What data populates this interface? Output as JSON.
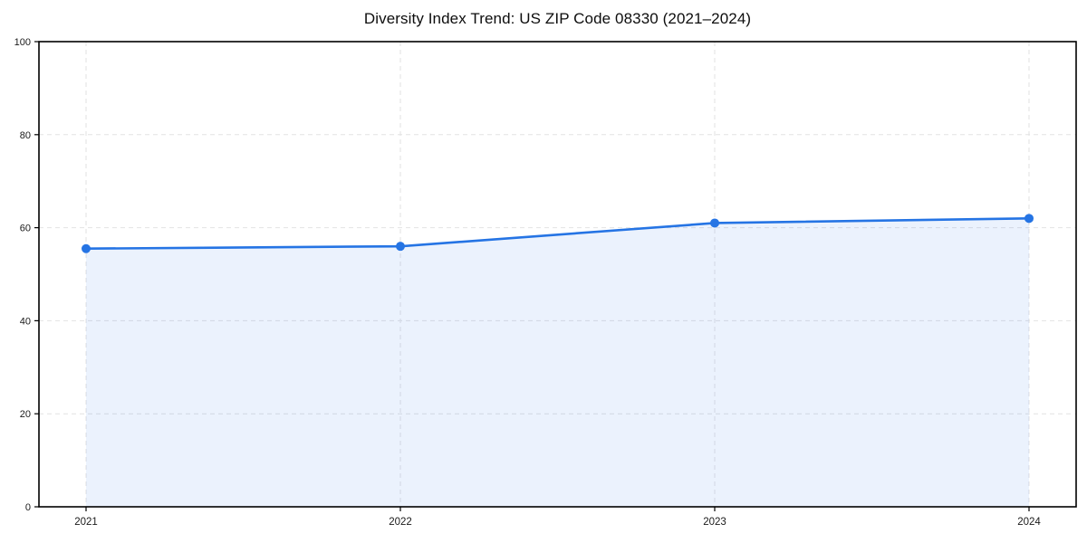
{
  "chart_data": {
    "type": "area",
    "title": "Diversity Index Trend: US ZIP Code 08330 (2021–2024)",
    "categories": [
      "2021",
      "2022",
      "2023",
      "2024"
    ],
    "series": [
      {
        "name": "Diversity Index",
        "values": [
          55.5,
          56,
          61,
          62
        ]
      }
    ],
    "xlabel": "",
    "ylabel": "",
    "ylim": [
      0,
      100
    ],
    "yticks": [
      0,
      20,
      40,
      60,
      80,
      100
    ],
    "grid": true,
    "grid_style": "dashed",
    "legend": "none",
    "line_color": "#2574e4",
    "marker_color": "#2574e4",
    "fill_color": "#2574e4",
    "fill_opacity": 0.09,
    "grid_color": "#e2e2e2",
    "spine_color": "#000000"
  }
}
